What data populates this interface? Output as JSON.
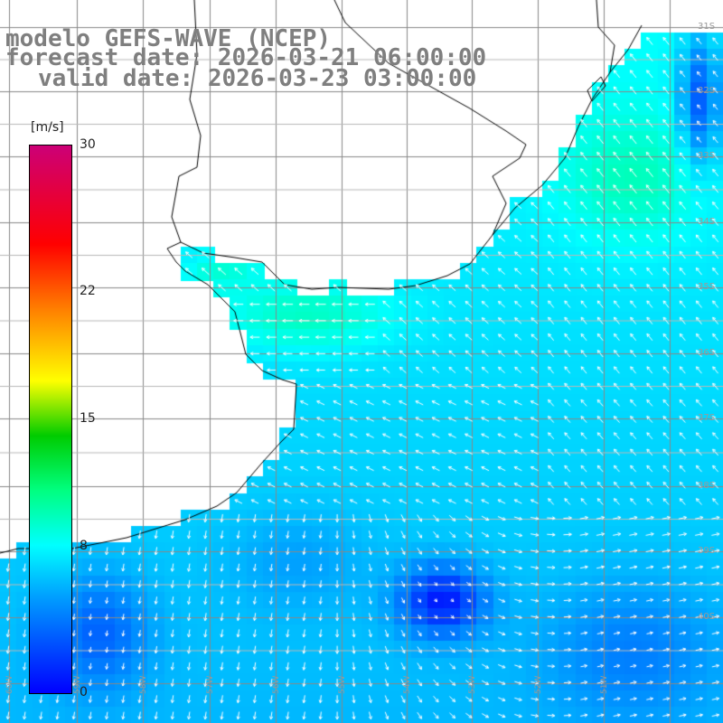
{
  "header": {
    "line1": "modelo GEFS-WAVE (NCEP)",
    "line2": "forecast date: 2026-03-21 06:00:00",
    "line3": "valid date: 2026-03-23 03:00:00"
  },
  "colorbar": {
    "unit": "[m/s]",
    "ticks": [
      {
        "value": 0,
        "label": "0"
      },
      {
        "value": 8,
        "label": "8"
      },
      {
        "value": 15,
        "label": "15"
      },
      {
        "value": 22,
        "label": "22"
      },
      {
        "value": 30,
        "label": "30"
      }
    ],
    "colors": [
      "#0000ff",
      "#0099ff",
      "#00ffff",
      "#00ff80",
      "#00cc00",
      "#ffff00",
      "#ff8000",
      "#ff0000",
      "#cc0077"
    ]
  },
  "map": {
    "lat_labels": [
      "31S",
      "32S",
      "33S",
      "34S",
      "35S",
      "36S",
      "37S",
      "38S",
      "39S",
      "40S"
    ],
    "lon_labels": [
      "60W",
      "59W",
      "58W",
      "57W",
      "56W",
      "55W",
      "54W",
      "53W",
      "52W",
      "51W"
    ],
    "vector_field": "wind",
    "land_color": "#ffffff",
    "grid_color": "#888888"
  }
}
